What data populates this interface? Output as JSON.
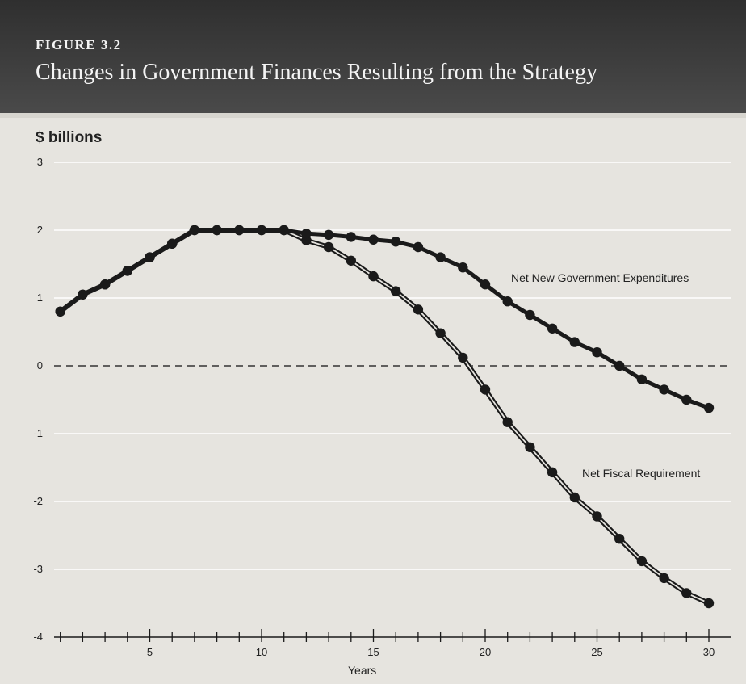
{
  "header": {
    "figure_label": "FIGURE 3.2",
    "title": "Changes in Government Finances Resulting from the Strategy"
  },
  "chart_data": {
    "type": "line",
    "title": "Changes in Government Finances Resulting from the Strategy",
    "ylabel": "$ billions",
    "xlabel": "Years",
    "x": [
      1,
      2,
      3,
      4,
      5,
      6,
      7,
      8,
      9,
      10,
      11,
      12,
      13,
      14,
      15,
      16,
      17,
      18,
      19,
      20,
      21,
      22,
      23,
      24,
      25,
      26,
      27,
      28,
      29,
      30
    ],
    "xlim": [
      0,
      30
    ],
    "ylim": [
      -4,
      3
    ],
    "yticks": [
      "3",
      "2",
      "1",
      "0",
      "-1",
      "-2",
      "-3",
      "-4"
    ],
    "xticks": [
      "5",
      "10",
      "15",
      "20",
      "25",
      "30"
    ],
    "grid": true,
    "series": [
      {
        "name": "Net New Government Expenditures",
        "values": [
          0.8,
          1.05,
          1.2,
          1.4,
          1.6,
          1.8,
          2.0,
          2.0,
          2.0,
          2.0,
          2.0,
          1.95,
          1.93,
          1.9,
          1.86,
          1.83,
          1.75,
          1.6,
          1.45,
          1.2,
          0.95,
          0.75,
          0.55,
          0.35,
          0.2,
          0.0,
          -0.2,
          -0.35,
          -0.5,
          -0.62
        ]
      },
      {
        "name": "Net Fiscal Requirement",
        "values": [
          0.8,
          1.05,
          1.2,
          1.4,
          1.6,
          1.8,
          2.0,
          2.0,
          2.0,
          2.0,
          2.0,
          1.85,
          1.75,
          1.55,
          1.32,
          1.1,
          0.83,
          0.48,
          0.12,
          -0.35,
          -0.83,
          -1.2,
          -1.57,
          -1.94,
          -2.22,
          -2.55,
          -2.88,
          -3.13,
          -3.35,
          -3.5
        ]
      }
    ],
    "colors": {
      "line": "#1a1a1a",
      "grid": "#ffffff",
      "zero_line": "#333333"
    }
  }
}
